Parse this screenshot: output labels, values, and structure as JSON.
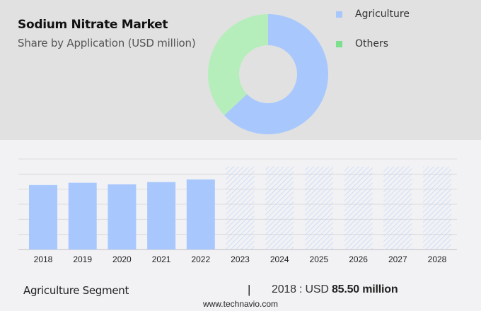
{
  "header": {
    "title": "Sodium Nitrate Market",
    "subtitle": "Share by Application (USD million)"
  },
  "legend": [
    {
      "label": "Agriculture",
      "color": "#a8c8fd"
    },
    {
      "label": "Others",
      "color": "#7ce08f"
    }
  ],
  "footer": {
    "segment_label": "Agriculture Segment",
    "separator": "|",
    "value_prefix": "2018 : USD",
    "value_bold": "85.50 million",
    "source": "www.technavio.com"
  },
  "chart_data": [
    {
      "type": "pie",
      "title": "Sodium Nitrate Market",
      "subtitle": "Share by Application (USD million)",
      "donut": true,
      "labels": [
        "Agriculture",
        "Others"
      ],
      "values": [
        63,
        37
      ],
      "colors": [
        "#a8c8fd",
        "#b5eeba"
      ],
      "legend_position": "right"
    },
    {
      "type": "bar",
      "title": "Agriculture Segment",
      "categories": [
        "2018",
        "2019",
        "2020",
        "2021",
        "2022",
        "2023",
        "2024",
        "2025",
        "2026",
        "2027",
        "2028"
      ],
      "series": [
        {
          "name": "Agriculture (historic)",
          "values": [
            85.5,
            88.5,
            86.5,
            89.5,
            93.0,
            null,
            null,
            null,
            null,
            null,
            null
          ]
        },
        {
          "name": "Agriculture (forecast, hatched)",
          "values": [
            null,
            null,
            null,
            null,
            null,
            110,
            110,
            110,
            110,
            110,
            110
          ]
        }
      ],
      "annotation": "2018 : USD 85.50 million",
      "ylim": [
        0,
        120
      ],
      "grid": true,
      "y_axis_labels_shown": false,
      "forecast_style": "hatched",
      "bar_color": "#a8c8fd"
    }
  ]
}
